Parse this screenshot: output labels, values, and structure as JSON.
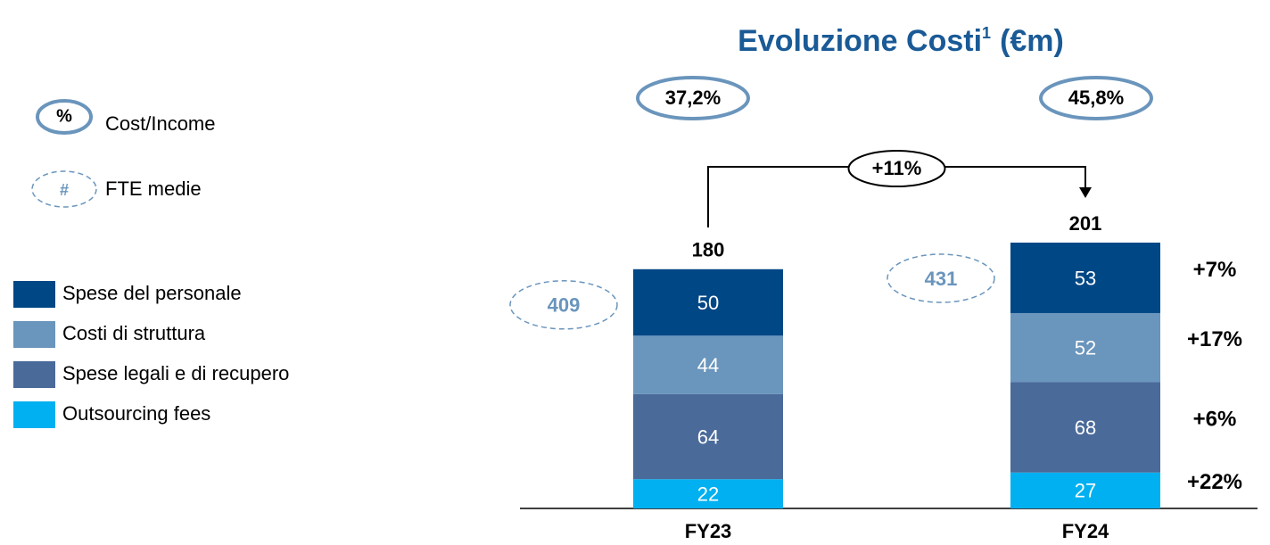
{
  "chart_data": {
    "type": "stacked_bar",
    "title": "Evoluzione Costi",
    "title_sup": "1",
    "title_suffix": "(€m)",
    "categories": [
      "FY23",
      "FY24"
    ],
    "series": [
      {
        "name": "Spese del personale",
        "color": "#004785",
        "values": [
          50,
          53
        ],
        "growth": [
          7
        ],
        "growth_labels": [
          "+7%"
        ]
      },
      {
        "name": "Costi di struttura",
        "color": "#6a95bc",
        "values": [
          44,
          52
        ],
        "growth": [
          17
        ],
        "growth_labels": [
          "+17%"
        ]
      },
      {
        "name": "Spese legali e di recupero",
        "color": "#4a6a9a",
        "values": [
          64,
          68
        ],
        "growth": [
          6
        ],
        "growth_labels": [
          "+6%"
        ]
      },
      {
        "name": "Outsourcing fees",
        "color": "#00b0f0",
        "values": [
          22,
          27
        ],
        "growth": [
          22
        ],
        "growth_labels": [
          "+22%"
        ]
      }
    ],
    "totals": [
      180,
      201
    ],
    "cost_income": [
      37.2,
      45.8
    ],
    "cost_income_labels": [
      "37,2%",
      "45,8%"
    ],
    "fte": [
      409,
      431
    ],
    "total_growth": 11,
    "total_growth_label": "+11%",
    "legend_symbols": [
      {
        "symbol": "%",
        "label": "Cost/Income"
      },
      {
        "symbol": "#",
        "label": "FTE medie"
      }
    ]
  }
}
